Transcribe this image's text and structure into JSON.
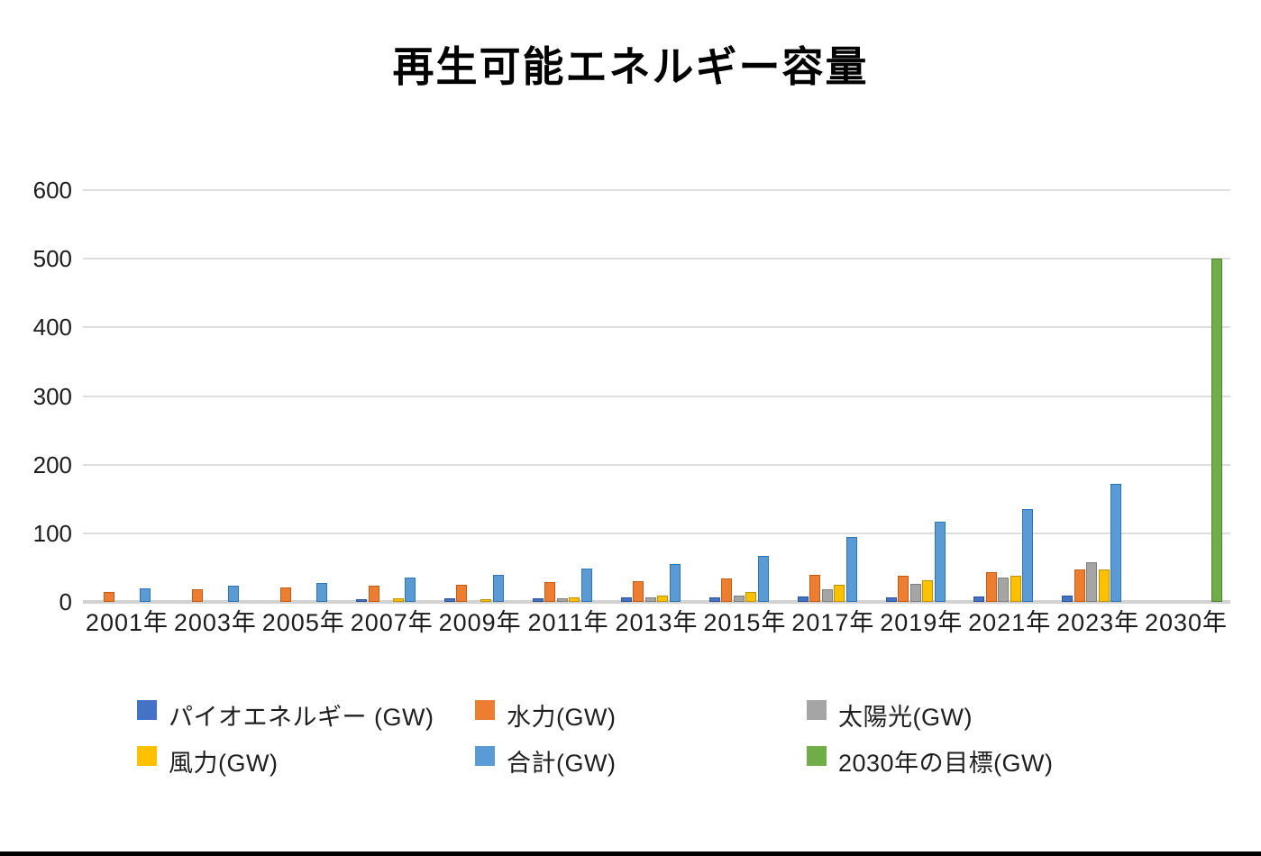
{
  "chart_data": {
    "type": "bar",
    "title": "再生可能エネルギー容量",
    "xlabel": "",
    "ylabel": "",
    "ylim": [
      0,
      600
    ],
    "yticks": [
      0,
      100,
      200,
      300,
      400,
      500,
      600
    ],
    "grid": true,
    "legend_position": "bottom",
    "categories": [
      "2001年",
      "2003年",
      "2005年",
      "2007年",
      "2009年",
      "2011年",
      "2013年",
      "2015年",
      "2017年",
      "2019年",
      "2021年",
      "2023年",
      "2030年"
    ],
    "series": [
      {
        "name": "パイオエネルギー (GW)",
        "color": "#4472C4",
        "border_color": "#2E5395",
        "values": [
          0,
          0,
          0,
          4,
          5,
          5,
          6,
          7,
          8,
          7,
          8,
          9,
          null
        ]
      },
      {
        "name": "水力(GW)",
        "color": "#ED7D31",
        "border_color": "#C55A11",
        "values": [
          15,
          18,
          21,
          24,
          25,
          29,
          30,
          34,
          39,
          38,
          43,
          47,
          null
        ]
      },
      {
        "name": "太陽光(GW)",
        "color": "#A5A5A5",
        "border_color": "#7F7F7F",
        "values": [
          0,
          0,
          0,
          0,
          0,
          5,
          7,
          9,
          18,
          26,
          36,
          58,
          null
        ]
      },
      {
        "name": "風力(GW)",
        "color": "#FFC000",
        "border_color": "#BF9000",
        "values": [
          0,
          0,
          0,
          5,
          4,
          6,
          9,
          15,
          25,
          32,
          38,
          47,
          null
        ]
      },
      {
        "name": "合計(GW)",
        "color": "#5B9BD5",
        "border_color": "#2E75B6",
        "values": [
          20,
          24,
          28,
          35,
          40,
          49,
          55,
          67,
          94,
          117,
          135,
          172,
          null
        ]
      },
      {
        "name": "2030年の目標(GW)",
        "color": "#70AD47",
        "border_color": "#548235",
        "values": [
          null,
          null,
          null,
          null,
          null,
          null,
          null,
          null,
          null,
          null,
          null,
          null,
          500
        ]
      }
    ]
  }
}
